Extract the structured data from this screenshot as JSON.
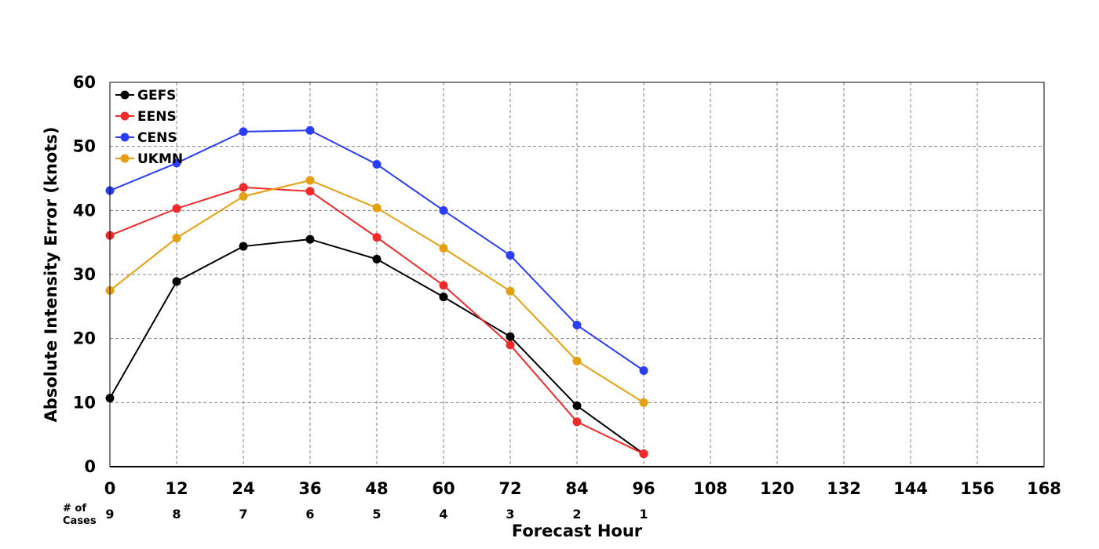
{
  "chart_data": {
    "type": "line",
    "xlabel": "Forecast Hour",
    "ylabel": "Absolute Intensity Error (knots)",
    "xlim": [
      0,
      168
    ],
    "ylim": [
      0,
      60
    ],
    "x_ticks": [
      0,
      12,
      24,
      36,
      48,
      60,
      72,
      84,
      96,
      108,
      120,
      132,
      144,
      156,
      168
    ],
    "y_ticks": [
      0,
      10,
      20,
      30,
      40,
      50,
      60
    ],
    "grid": true,
    "legend_position": "top-left",
    "x": [
      0,
      12,
      24,
      36,
      48,
      60,
      72,
      84,
      96
    ],
    "series": [
      {
        "name": "GEFS",
        "color": "#000000",
        "values": [
          10.7,
          28.9,
          34.4,
          35.5,
          32.4,
          26.5,
          20.3,
          9.5,
          2.0
        ]
      },
      {
        "name": "EENS",
        "color": "#f02a2a",
        "values": [
          36.1,
          40.3,
          43.6,
          43.0,
          35.8,
          28.3,
          19.0,
          7.0,
          2.0
        ]
      },
      {
        "name": "CENS",
        "color": "#2a3ff5",
        "values": [
          43.1,
          47.4,
          52.3,
          52.5,
          47.2,
          40.0,
          33.0,
          22.1,
          15.0
        ]
      },
      {
        "name": "UKMN",
        "color": "#e5a011",
        "values": [
          27.5,
          35.7,
          42.2,
          44.7,
          40.4,
          34.1,
          27.4,
          16.5,
          10.0
        ]
      }
    ],
    "cases": {
      "label_line1": "# of",
      "label_line2": "Cases",
      "values": [
        9,
        8,
        7,
        6,
        5,
        4,
        3,
        2,
        1
      ]
    }
  }
}
